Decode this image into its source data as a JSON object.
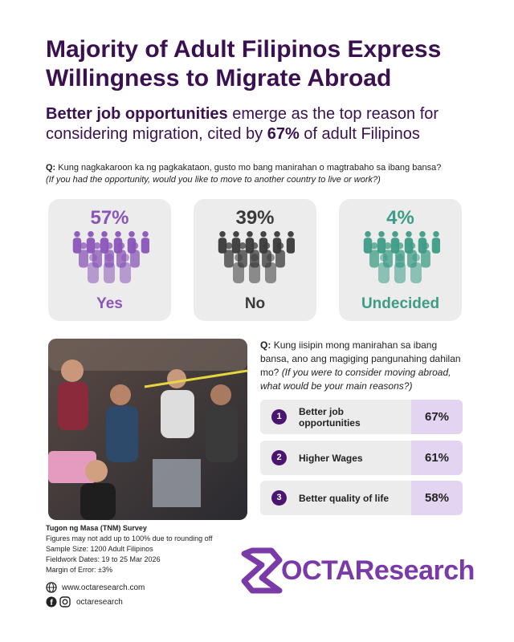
{
  "header": {
    "title": "Majority of Adult Filipinos Express Willingness to Migrate Abroad",
    "subtitle": [
      "Better job opportunities",
      " emerge as the top reason for considering migration, cited by ",
      "67%",
      " of adult Filipinos"
    ]
  },
  "question1": {
    "label": "Q:",
    "text": "Kung nagkakaroon ka ng pagkakataon, gusto mo bang manirahan o magtrabaho sa ibang bansa?",
    "translation": "(If you had the opportunity, would you like to move to another country to live or work?)"
  },
  "results": [
    {
      "value": "57%",
      "label": "Yes",
      "color": "#8a55b8"
    },
    {
      "value": "39%",
      "label": "No",
      "color": "#3a3a3a"
    },
    {
      "value": "4%",
      "label": "Undecided",
      "color": "#3d9c86"
    }
  ],
  "question2": {
    "label": "Q:",
    "text": "Kung iisipin mong manirahan sa ibang bansa, ano ang magiging pangunahing dahilan mo?",
    "translation": "(If you were to consider moving abroad, what would be your main reasons?)"
  },
  "reasons": [
    {
      "rank": "1",
      "label": "Better job opportunities",
      "value": "67%"
    },
    {
      "rank": "2",
      "label": "Higher Wages",
      "value": "61%"
    },
    {
      "rank": "3",
      "label": "Better quality of life",
      "value": "58%"
    }
  ],
  "survey": {
    "title": "Tugon ng Masa (TNM) Survey",
    "notes": [
      "Figures may not add up to 100% due to rounding off",
      "Sample Size: 1200 Adult Filipinos",
      "Fieldwork Dates: 19 to 25 Mar 2026",
      "Margin of Error: ±3%"
    ]
  },
  "contact": {
    "website": "www.octaresearch.com",
    "social": "octaresearch"
  },
  "logo": {
    "text": "OCTAResearch"
  }
}
